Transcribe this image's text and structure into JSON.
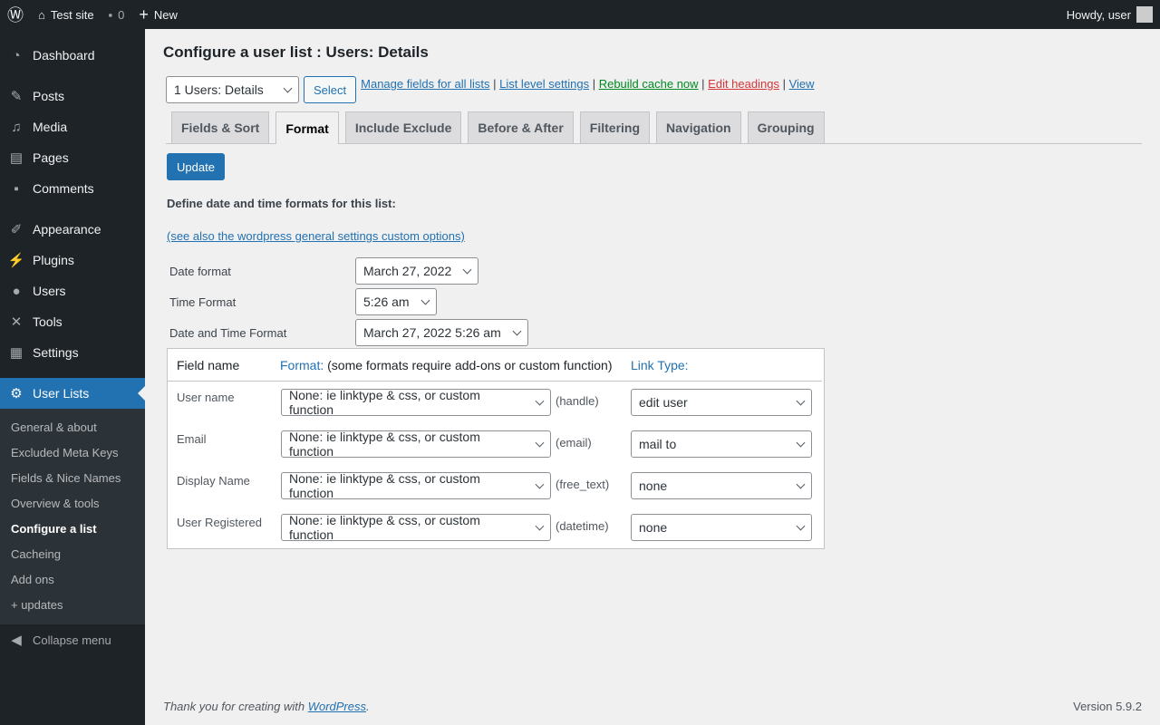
{
  "adminbar": {
    "site": "Test site",
    "comments": "0",
    "new": "New",
    "howdy": "Howdy, user"
  },
  "sidebar": {
    "items": [
      "Dashboard",
      "Posts",
      "Media",
      "Pages",
      "Comments",
      "Appearance",
      "Plugins",
      "Users",
      "Tools",
      "Settings",
      "User Lists"
    ],
    "sub": [
      "General & about",
      "Excluded Meta Keys",
      "Fields & Nice Names",
      "Overview & tools",
      "Configure a list",
      "Cacheing",
      "Add ons",
      "+ updates"
    ],
    "collapse": "Collapse menu"
  },
  "page": {
    "title": "Configure a user list : Users: Details",
    "list_select": "1 Users: Details",
    "select_btn": "Select",
    "links": [
      "Manage fields for all lists",
      "List level settings",
      "Rebuild cache now",
      "Edit headings",
      "View"
    ],
    "link_colors": {
      "rebuild": "#008a20",
      "edit": "#d63638"
    },
    "tabs": [
      "Fields & Sort",
      "Format",
      "Include Exclude",
      "Before & After",
      "Filtering",
      "Navigation",
      "Grouping"
    ],
    "active_tab": "Format",
    "update": "Update",
    "intro": "Define date and time formats for this list:",
    "see_also": "(see also the wordpress general settings custom options)",
    "formats": [
      {
        "label": "Date format",
        "value": "March 27, 2022"
      },
      {
        "label": "Time Format",
        "value": "5:26 am"
      },
      {
        "label": "Date and Time Format",
        "value": "March 27, 2022 5:26 am"
      }
    ],
    "table": {
      "h_field": "Field name",
      "h_format": "Format:",
      "h_format_note": "(some formats require add-ons or custom function)",
      "h_link": "Link Type:",
      "rows": [
        {
          "field": "User name",
          "format": "None: ie linktype & css, or custom function",
          "type": "(handle)",
          "link": "edit user"
        },
        {
          "field": "Email",
          "format": "None: ie linktype & css, or custom function",
          "type": "(email)",
          "link": "mail to"
        },
        {
          "field": "Display Name",
          "format": "None: ie linktype & css, or custom function",
          "type": "(free_text)",
          "link": "none"
        },
        {
          "field": "User Registered",
          "format": "None: ie linktype & css, or custom function",
          "type": "(datetime)",
          "link": "none"
        }
      ]
    }
  },
  "footer": {
    "thanks": "Thank you for creating with ",
    "wp": "WordPress",
    "version": "Version 5.9.2"
  }
}
